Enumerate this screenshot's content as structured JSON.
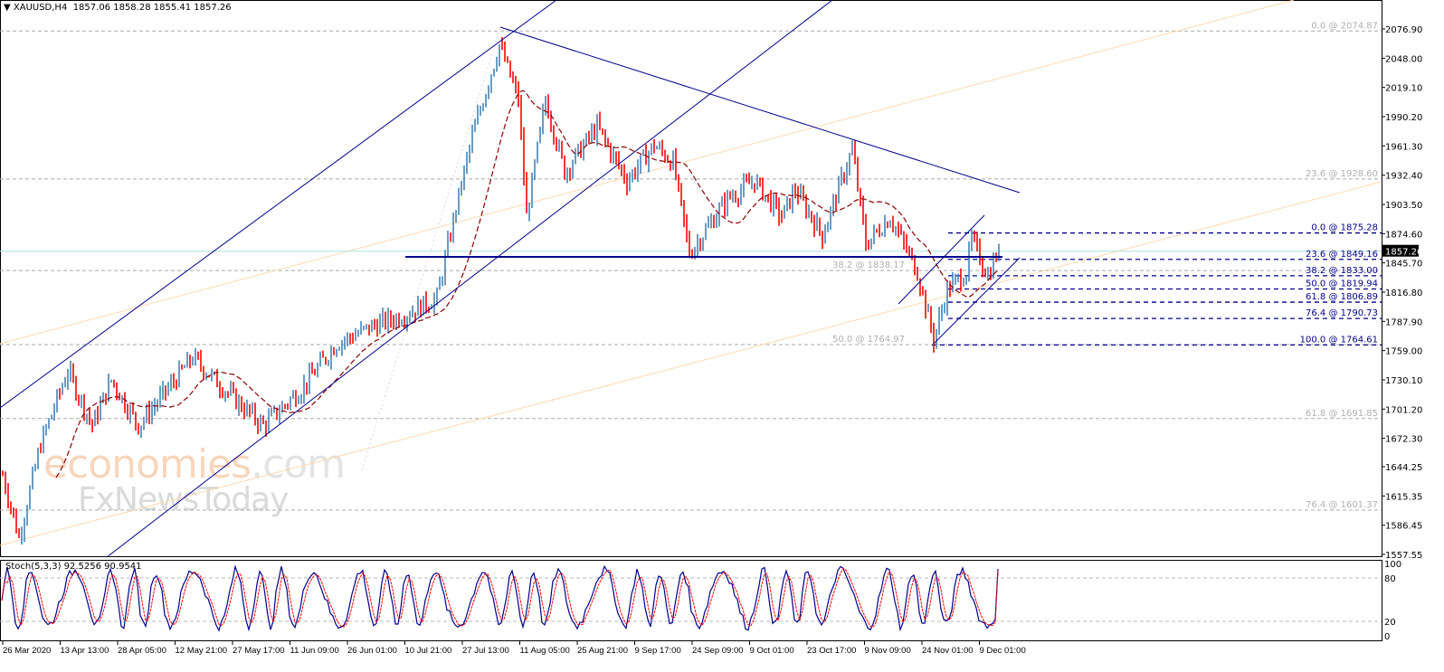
{
  "header": {
    "symbol": "XAUUSD,H4",
    "ohlc": "1857.06 1858.28 1855.41 1857.26"
  },
  "watermark": {
    "brand_a": "economies",
    "brand_b": ".com",
    "brand_c": "FxNewsToday"
  },
  "colors": {
    "bull": "#4682b4",
    "bear": "#ff0000",
    "ma": "#8b0000",
    "trend": "#00008b",
    "fib_old": "#a9a9a9",
    "fib_new": "#00008b",
    "channel_orange": "#ffd9b0",
    "price_line": "#afdfdf"
  },
  "chart_data": {
    "type": "candlestick",
    "title": "XAUUSD,H4",
    "ylim": [
      1557.55,
      2076.9
    ],
    "y_ticks": [
      "2076.90",
      "2048.00",
      "2019.10",
      "1990.20",
      "1961.30",
      "1932.40",
      "1903.50",
      "1874.60",
      "1845.70",
      "1816.80",
      "1787.90",
      "1759.00",
      "1730.10",
      "1701.20",
      "1672.30",
      "1644.25",
      "1615.35",
      "1586.45",
      "1557.55"
    ],
    "x_ticks": [
      "26 Mar 2020",
      "13 Apr 13:00",
      "28 Apr 05:00",
      "12 May 21:00",
      "27 May 17:00",
      "11 Jun 09:00",
      "26 Jun 01:00",
      "10 Jul 21:00",
      "27 Jul 13:00",
      "11 Aug 05:00",
      "25 Aug 21:00",
      "9 Sep 17:00",
      "24 Sep 09:00",
      "9 Oct 01:00",
      "23 Oct 17:00",
      "9 Nov 09:00",
      "24 Nov 01:00",
      "9 Dec 01:00"
    ],
    "current_price": "1857.26",
    "price_path_bar_price": [
      [
        0,
        1636
      ],
      [
        6,
        1574
      ],
      [
        14,
        1667
      ],
      [
        24,
        1739
      ],
      [
        33,
        1685
      ],
      [
        40,
        1730
      ],
      [
        50,
        1685
      ],
      [
        70,
        1752
      ],
      [
        85,
        1712
      ],
      [
        96,
        1685
      ],
      [
        110,
        1721
      ],
      [
        123,
        1766
      ],
      [
        137,
        1784
      ],
      [
        147,
        1793
      ],
      [
        160,
        1811
      ],
      [
        167,
        1900
      ],
      [
        173,
        1971
      ],
      [
        183,
        2061
      ],
      [
        190,
        2007
      ],
      [
        193,
        1891
      ],
      [
        200,
        2007
      ],
      [
        207,
        1936
      ],
      [
        219,
        1980
      ],
      [
        230,
        1927
      ],
      [
        240,
        1962
      ],
      [
        247,
        1945
      ],
      [
        253,
        1855
      ],
      [
        267,
        1909
      ],
      [
        277,
        1927
      ],
      [
        287,
        1891
      ],
      [
        292,
        1918
      ],
      [
        302,
        1873
      ],
      [
        313,
        1958
      ],
      [
        318,
        1864
      ],
      [
        327,
        1891
      ],
      [
        337,
        1837
      ],
      [
        343,
        1770
      ],
      [
        348,
        1819
      ],
      [
        355,
        1837
      ],
      [
        357,
        1869
      ],
      [
        363,
        1833
      ],
      [
        367,
        1860
      ]
    ],
    "fib_old": [
      {
        "label": "0.0 @ 2074.87",
        "price": 2074.87
      },
      {
        "label": "23.6 @ 1928.60",
        "price": 1928.6
      },
      {
        "label": "38.2 @ 1838.17",
        "price": 1838.17
      },
      {
        "label": "50.0 @ 1764.97",
        "price": 1764.97
      },
      {
        "label": "61.8 @ 1691.85",
        "price": 1691.85
      },
      {
        "label": "76.4 @ 1601.37",
        "price": 1601.37
      }
    ],
    "fib_new": [
      {
        "label": "0.0 @ 1875.28",
        "price": 1875.28
      },
      {
        "label": "23.6 @ 1849.16",
        "price": 1849.16
      },
      {
        "label": "38.2 @ 1833.00",
        "price": 1833.0
      },
      {
        "label": "50.0 @ 1819.94",
        "price": 1819.94
      },
      {
        "label": "61.8 @ 1806.89",
        "price": 1806.89
      },
      {
        "label": "76.4 @ 1790.73",
        "price": 1790.73
      },
      {
        "label": "100.0 @ 1764.61",
        "price": 1764.61
      }
    ],
    "support_level": 1851.6,
    "stoch": {
      "label": "Stoch(5,3,3) 92.5256 90.9541",
      "main": 92.5256,
      "signal": 90.9541,
      "levels": [
        "100",
        "80",
        "20",
        "0"
      ]
    }
  }
}
